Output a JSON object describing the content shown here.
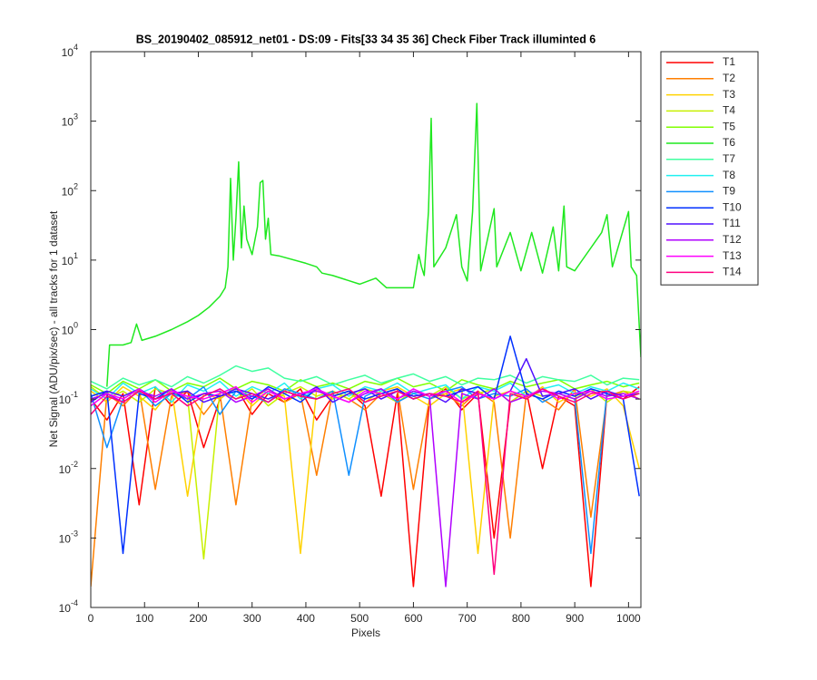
{
  "chart_data": {
    "type": "line",
    "title": "BS_20190402_085912_net01 - DS:09 - Fits[33  34  35  36]    Check Fiber     Track illuminted 6",
    "xlabel": "Pixels",
    "ylabel": "Net Signal (ADU/pix/sec) - all tracks for 1 dataset",
    "ylog": true,
    "legend": "northeastoutside",
    "xlim": [
      0,
      1023
    ],
    "xticks": [
      0,
      100,
      200,
      300,
      400,
      500,
      600,
      700,
      800,
      900,
      1000
    ],
    "ylim": [
      0.0001,
      10000
    ],
    "yticks": [
      {
        "value": 0.0001,
        "label": "10",
        "exponent": "-4"
      },
      {
        "value": 0.001,
        "label": "10",
        "exponent": "-3"
      },
      {
        "value": 0.01,
        "label": "10",
        "exponent": "-2"
      },
      {
        "value": 0.1,
        "label": "10",
        "exponent": "-1"
      },
      {
        "value": 1,
        "label": "10",
        "exponent": "0"
      },
      {
        "value": 10,
        "label": "10",
        "exponent": "1"
      },
      {
        "value": 100,
        "label": "10",
        "exponent": "2"
      },
      {
        "value": 1000,
        "label": "10",
        "exponent": "3"
      },
      {
        "value": 10000,
        "label": "10",
        "exponent": "4"
      }
    ],
    "x": [
      0,
      30,
      60,
      90,
      120,
      150,
      180,
      210,
      240,
      270,
      300,
      330,
      360,
      390,
      420,
      450,
      480,
      510,
      540,
      570,
      600,
      630,
      660,
      690,
      720,
      750,
      780,
      810,
      840,
      870,
      900,
      930,
      960,
      990,
      1020
    ],
    "series": [
      {
        "name": "T1",
        "color": "#ff0000",
        "values": [
          0.1,
          0.05,
          0.12,
          0.003,
          0.15,
          0.08,
          0.13,
          0.02,
          0.1,
          0.15,
          0.06,
          0.12,
          0.09,
          0.14,
          0.05,
          0.11,
          0.13,
          0.08,
          0.004,
          0.12,
          0.0002,
          0.1,
          0.14,
          0.07,
          0.12,
          0.001,
          0.09,
          0.13,
          0.01,
          0.11,
          0.08,
          0.0002,
          0.12,
          0.1,
          0.15
        ]
      },
      {
        "name": "T2",
        "color": "#ff7f00",
        "values": [
          0.0002,
          0.12,
          0.08,
          0.14,
          0.005,
          0.11,
          0.13,
          0.06,
          0.12,
          0.003,
          0.1,
          0.14,
          0.09,
          0.12,
          0.008,
          0.13,
          0.1,
          0.07,
          0.12,
          0.14,
          0.005,
          0.1,
          0.12,
          0.08,
          0.13,
          0.09,
          0.001,
          0.12,
          0.1,
          0.07,
          0.14,
          0.002,
          0.11,
          0.13,
          0.1
        ]
      },
      {
        "name": "T3",
        "color": "#ffd200",
        "values": [
          0.13,
          0.09,
          0.15,
          0.11,
          0.07,
          0.14,
          0.004,
          0.12,
          0.1,
          0.15,
          0.08,
          0.13,
          0.11,
          0.0006,
          0.14,
          0.1,
          0.12,
          0.09,
          0.13,
          0.15,
          0.11,
          0.08,
          0.12,
          0.14,
          0.0006,
          0.11,
          0.13,
          0.1,
          0.15,
          0.09,
          0.12,
          0.11,
          0.14,
          0.08,
          0.01
        ]
      },
      {
        "name": "T4",
        "color": "#c8f000",
        "values": [
          0.15,
          0.1,
          0.13,
          0.09,
          0.14,
          0.12,
          0.11,
          0.0005,
          0.13,
          0.1,
          0.14,
          0.08,
          0.12,
          0.15,
          0.11,
          0.13,
          0.1,
          0.14,
          0.12,
          0.09,
          0.13,
          0.11,
          0.15,
          0.1,
          0.12,
          0.14,
          0.09,
          0.13,
          0.11,
          0.12,
          0.1,
          0.14,
          0.09,
          0.13,
          0.12
        ]
      },
      {
        "name": "T5",
        "color": "#80ff00",
        "values": [
          0.16,
          0.12,
          0.18,
          0.14,
          0.19,
          0.13,
          0.17,
          0.15,
          0.2,
          0.14,
          0.18,
          0.16,
          0.13,
          0.19,
          0.15,
          0.17,
          0.14,
          0.18,
          0.16,
          0.2,
          0.15,
          0.17,
          0.13,
          0.19,
          0.16,
          0.14,
          0.18,
          0.15,
          0.17,
          0.19,
          0.14,
          0.16,
          0.18,
          0.15,
          0.17
        ]
      },
      {
        "name": "T6",
        "color": "#1fe81f",
        "x": [
          30,
          35,
          60,
          75,
          85,
          95,
          120,
          150,
          180,
          200,
          220,
          240,
          250,
          255,
          260,
          265,
          270,
          275,
          280,
          285,
          290,
          300,
          310,
          315,
          320,
          325,
          330,
          335,
          350,
          400,
          420,
          430,
          450,
          500,
          530,
          550,
          600,
          610,
          615,
          620,
          628,
          633,
          638,
          660,
          680,
          690,
          700,
          710,
          718,
          725,
          750,
          755,
          780,
          800,
          820,
          840,
          860,
          870,
          880,
          885,
          900,
          950,
          960,
          970,
          1000,
          1005,
          1015,
          1023
        ],
        "values": [
          0.15,
          0.6,
          0.6,
          0.65,
          1.2,
          0.7,
          0.8,
          1.0,
          1.3,
          1.6,
          2.1,
          3.0,
          4.0,
          8,
          150,
          10,
          40,
          260,
          15,
          60,
          20,
          12,
          30,
          130,
          140,
          20,
          40,
          12,
          11.5,
          9,
          8,
          6.5,
          6,
          4.5,
          5.5,
          4,
          4,
          12,
          8,
          6,
          50,
          1100,
          8,
          15,
          45,
          8,
          5,
          50,
          1800,
          7,
          55,
          8,
          25,
          7,
          25,
          6.5,
          30,
          7,
          60,
          8,
          7,
          25,
          45,
          8,
          50,
          8,
          6,
          0.4
        ]
      },
      {
        "name": "T7",
        "color": "#40ffa0",
        "values": [
          0.18,
          0.14,
          0.2,
          0.16,
          0.19,
          0.15,
          0.21,
          0.17,
          0.22,
          0.3,
          0.25,
          0.28,
          0.2,
          0.18,
          0.21,
          0.16,
          0.19,
          0.22,
          0.17,
          0.2,
          0.23,
          0.18,
          0.21,
          0.16,
          0.2,
          0.19,
          0.22,
          0.17,
          0.21,
          0.19,
          0.18,
          0.22,
          0.16,
          0.2,
          0.19
        ]
      },
      {
        "name": "T8",
        "color": "#20f0f0",
        "values": [
          0.14,
          0.1,
          0.17,
          0.12,
          0.15,
          0.09,
          0.16,
          0.13,
          0.18,
          0.11,
          0.15,
          0.12,
          0.17,
          0.1,
          0.14,
          0.16,
          0.11,
          0.15,
          0.13,
          0.17,
          0.12,
          0.14,
          0.16,
          0.1,
          0.15,
          0.13,
          0.17,
          0.11,
          0.14,
          0.16,
          0.12,
          0.15,
          0.13,
          0.17,
          0.14
        ]
      },
      {
        "name": "T9",
        "color": "#1090ff",
        "values": [
          0.12,
          0.02,
          0.1,
          0.14,
          0.08,
          0.12,
          0.1,
          0.15,
          0.06,
          0.13,
          0.11,
          0.09,
          0.14,
          0.12,
          0.1,
          0.13,
          0.008,
          0.11,
          0.14,
          0.09,
          0.12,
          0.1,
          0.13,
          0.15,
          0.1,
          0.12,
          0.11,
          0.14,
          0.09,
          0.12,
          0.1,
          0.0006,
          0.13,
          0.11,
          0.12
        ]
      },
      {
        "name": "T10",
        "color": "#0030ff",
        "values": [
          0.11,
          0.13,
          0.0006,
          0.12,
          0.1,
          0.14,
          0.09,
          0.12,
          0.11,
          0.13,
          0.1,
          0.15,
          0.12,
          0.09,
          0.14,
          0.11,
          0.13,
          0.1,
          0.12,
          0.14,
          0.1,
          0.12,
          0.11,
          0.13,
          0.15,
          0.1,
          0.8,
          0.12,
          0.1,
          0.13,
          0.11,
          0.14,
          0.12,
          0.1,
          0.004
        ]
      },
      {
        "name": "T11",
        "color": "#5010ff",
        "values": [
          0.09,
          0.13,
          0.11,
          0.14,
          0.1,
          0.12,
          0.13,
          0.09,
          0.11,
          0.14,
          0.12,
          0.1,
          0.13,
          0.11,
          0.15,
          0.09,
          0.12,
          0.14,
          0.1,
          0.13,
          0.11,
          0.12,
          0.09,
          0.14,
          0.12,
          0.1,
          0.13,
          0.38,
          0.11,
          0.12,
          0.14,
          0.1,
          0.13,
          0.11,
          0.12
        ]
      },
      {
        "name": "T12",
        "color": "#b000ff",
        "values": [
          0.1,
          0.12,
          0.09,
          0.13,
          0.11,
          0.14,
          0.1,
          0.12,
          0.13,
          0.09,
          0.11,
          0.14,
          0.1,
          0.12,
          0.13,
          0.11,
          0.09,
          0.12,
          0.14,
          0.1,
          0.13,
          0.11,
          0.0002,
          0.12,
          0.1,
          0.14,
          0.09,
          0.11,
          0.13,
          0.12,
          0.1,
          0.13,
          0.11,
          0.12,
          0.1
        ]
      },
      {
        "name": "T13",
        "color": "#ff00ff",
        "values": [
          0.08,
          0.12,
          0.1,
          0.14,
          0.09,
          0.13,
          0.11,
          0.1,
          0.12,
          0.15,
          0.09,
          0.13,
          0.1,
          0.12,
          0.14,
          0.11,
          0.09,
          0.13,
          0.12,
          0.1,
          0.14,
          0.11,
          0.13,
          0.09,
          0.12,
          0.1,
          0.13,
          0.11,
          0.14,
          0.1,
          0.12,
          0.13,
          0.1,
          0.11,
          0.13
        ]
      },
      {
        "name": "T14",
        "color": "#ff0080",
        "values": [
          0.06,
          0.11,
          0.09,
          0.13,
          0.1,
          0.12,
          0.08,
          0.11,
          0.14,
          0.1,
          0.12,
          0.09,
          0.13,
          0.11,
          0.1,
          0.12,
          0.14,
          0.09,
          0.11,
          0.13,
          0.1,
          0.12,
          0.11,
          0.09,
          0.13,
          0.0003,
          0.12,
          0.1,
          0.14,
          0.11,
          0.09,
          0.12,
          0.13,
          0.1,
          0.12
        ]
      }
    ]
  }
}
